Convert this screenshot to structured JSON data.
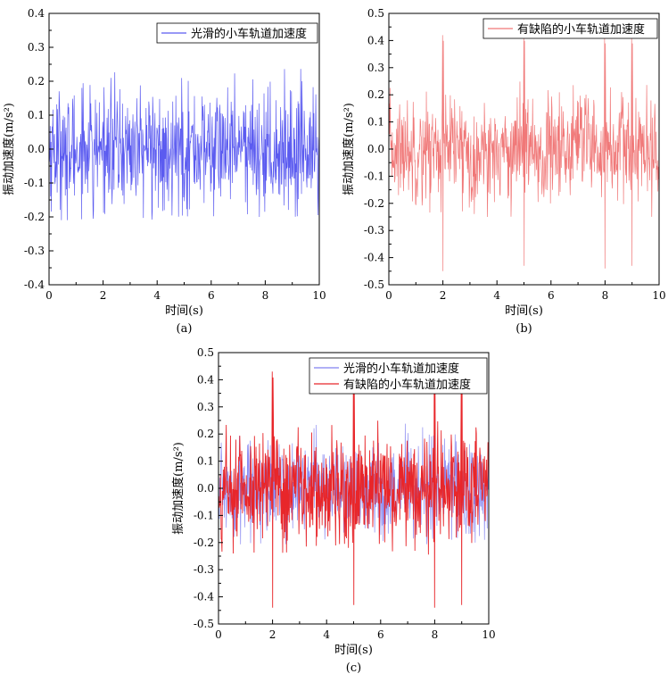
{
  "chart_data": [
    {
      "type": "line",
      "caption": "(a)",
      "xlabel": "时间(s)",
      "ylabel": "振动加速度(m/s²)",
      "xlim": [
        0,
        10
      ],
      "ylim": [
        -0.4,
        0.4
      ],
      "xticks": [
        0,
        2,
        4,
        6,
        8,
        10
      ],
      "yticks": [
        -0.4,
        -0.3,
        -0.2,
        -0.1,
        0.0,
        0.1,
        0.2,
        0.3,
        0.4
      ],
      "ytick_labels": [
        "-0.4",
        "-0.3",
        "-0.2",
        "-0.1",
        "0.0",
        "0.1",
        "0.2",
        "0.3",
        "0.4"
      ],
      "legend_position": "top-right",
      "series": [
        {
          "name": "光滑的小车轨道加速度",
          "color": "#5b5bf0",
          "envelope_max": 0.24,
          "envelope_min": -0.21,
          "spikes": []
        }
      ]
    },
    {
      "type": "line",
      "caption": "(b)",
      "xlabel": "时间(s)",
      "ylabel": "振动加速度(m/s²)",
      "xlim": [
        0,
        10
      ],
      "ylim": [
        -0.5,
        0.5
      ],
      "xticks": [
        0,
        2,
        4,
        6,
        8,
        10
      ],
      "yticks": [
        -0.5,
        -0.4,
        -0.3,
        -0.2,
        -0.1,
        0.0,
        0.1,
        0.2,
        0.3,
        0.4,
        0.5
      ],
      "ytick_labels": [
        "-0.5",
        "-0.4",
        "-0.3",
        "-0.2",
        "-0.1",
        "0.0",
        "0.1",
        "0.2",
        "0.3",
        "0.4",
        "0.5"
      ],
      "legend_position": "top-right",
      "series": [
        {
          "name": "有缺陷的小车轨道加速度",
          "color": "#f07878",
          "envelope_max": 0.25,
          "envelope_min": -0.25,
          "spikes": [
            {
              "x": 2.0,
              "max": 0.42,
              "min": -0.45
            },
            {
              "x": 5.0,
              "max": 0.42,
              "min": -0.43
            },
            {
              "x": 8.0,
              "max": 0.41,
              "min": -0.44
            },
            {
              "x": 9.0,
              "max": 0.41,
              "min": -0.43
            }
          ]
        }
      ]
    },
    {
      "type": "line",
      "caption": "(c)",
      "xlabel": "时间(s)",
      "ylabel": "振动加速度(m/s²)",
      "xlim": [
        0,
        10
      ],
      "ylim": [
        -0.5,
        0.5
      ],
      "xticks": [
        0,
        2,
        4,
        6,
        8,
        10
      ],
      "yticks": [
        -0.5,
        -0.4,
        -0.3,
        -0.2,
        -0.1,
        0.0,
        0.1,
        0.2,
        0.3,
        0.4,
        0.5
      ],
      "ytick_labels": [
        "-0.5",
        "-0.4",
        "-0.3",
        "-0.2",
        "-0.1",
        "0.0",
        "0.1",
        "0.2",
        "0.3",
        "0.4",
        "0.5"
      ],
      "legend_position": "top-right",
      "series": [
        {
          "name": "光滑的小车轨道加速度",
          "color": "#8080f0",
          "envelope_max": 0.24,
          "envelope_min": -0.21,
          "spikes": []
        },
        {
          "name": "有缺陷的小车轨道加速度",
          "color": "#e8262a",
          "envelope_max": 0.26,
          "envelope_min": -0.25,
          "spikes": [
            {
              "x": 2.0,
              "max": 0.43,
              "min": -0.44
            },
            {
              "x": 5.0,
              "max": 0.43,
              "min": -0.43
            },
            {
              "x": 8.0,
              "max": 0.43,
              "min": -0.44
            },
            {
              "x": 9.0,
              "max": 0.43,
              "min": -0.43
            }
          ]
        }
      ]
    }
  ]
}
